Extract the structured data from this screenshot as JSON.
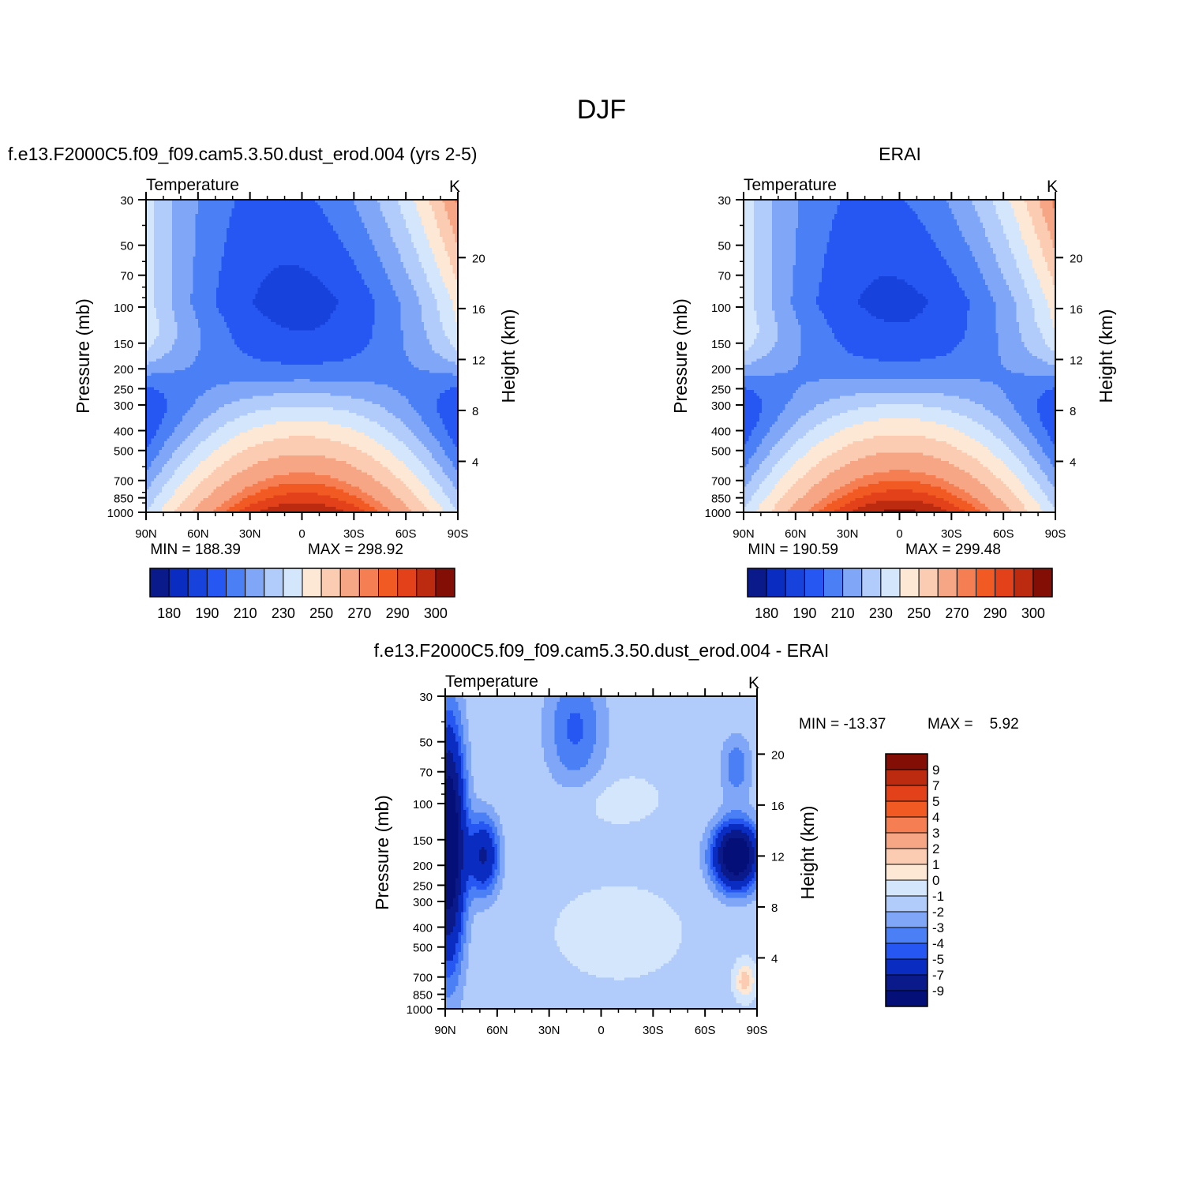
{
  "figure": {
    "title": "DJF"
  },
  "chart_data": [
    {
      "type": "heatmap",
      "panel": "model",
      "title": "f.e13.F2000C5.f09_f09.cam5.3.50.dust_erod.004 (yrs 2-5)",
      "variable": "Temperature",
      "units": "K",
      "xlabel": "",
      "ylabel": "Pressure (mb)",
      "ylabel_right": "Height (km)",
      "x_ticks": [
        "90N",
        "60N",
        "30N",
        "0",
        "30S",
        "60S",
        "90S"
      ],
      "y_ticks": [
        "30",
        "50",
        "70",
        "100",
        "150",
        "200",
        "250",
        "300",
        "400",
        "500",
        "700",
        "850",
        "1000"
      ],
      "y2_ticks": [
        "20",
        "16",
        "12",
        "8",
        "4"
      ],
      "min_text": "MIN = 188.39",
      "max_text": "MAX = 298.92",
      "min": 188.39,
      "max": 298.92,
      "colorbar": {
        "orientation": "horizontal",
        "colors": [
          "#0a1a8a",
          "#0b2cc0",
          "#1742dc",
          "#2757f2",
          "#4a7ff5",
          "#7fa6f7",
          "#b1cbfb",
          "#d4e6fb",
          "#fde8d6",
          "#fbccb2",
          "#f6a684",
          "#f57e52",
          "#f25a24",
          "#e2411a",
          "#bc2a10",
          "#820e06"
        ],
        "labels": [
          "180",
          "190",
          "210",
          "230",
          "250",
          "270",
          "290",
          "300"
        ]
      }
    },
    {
      "type": "heatmap",
      "panel": "obs",
      "title": "ERAI",
      "variable": "Temperature",
      "units": "K",
      "xlabel": "",
      "ylabel": "Pressure (mb)",
      "ylabel_right": "Height (km)",
      "x_ticks": [
        "90N",
        "60N",
        "30N",
        "0",
        "30S",
        "60S",
        "90S"
      ],
      "y_ticks": [
        "30",
        "50",
        "70",
        "100",
        "150",
        "200",
        "250",
        "300",
        "400",
        "500",
        "700",
        "850",
        "1000"
      ],
      "y2_ticks": [
        "20",
        "16",
        "12",
        "8",
        "4"
      ],
      "min_text": "MIN = 190.59",
      "max_text": "MAX = 299.48",
      "min": 190.59,
      "max": 299.48,
      "colorbar": {
        "orientation": "horizontal",
        "colors": [
          "#0a1a8a",
          "#0b2cc0",
          "#1742dc",
          "#2757f2",
          "#4a7ff5",
          "#7fa6f7",
          "#b1cbfb",
          "#d4e6fb",
          "#fde8d6",
          "#fbccb2",
          "#f6a684",
          "#f57e52",
          "#f25a24",
          "#e2411a",
          "#bc2a10",
          "#820e06"
        ],
        "labels": [
          "180",
          "190",
          "210",
          "230",
          "250",
          "270",
          "290",
          "300"
        ]
      }
    },
    {
      "type": "heatmap",
      "panel": "diff",
      "title": "f.e13.F2000C5.f09_f09.cam5.3.50.dust_erod.004 - ERAI",
      "variable": "Temperature",
      "units": "K",
      "xlabel": "",
      "ylabel": "Pressure (mb)",
      "ylabel_right": "Height (km)",
      "x_ticks": [
        "90N",
        "60N",
        "30N",
        "0",
        "30S",
        "60S",
        "90S"
      ],
      "y_ticks": [
        "30",
        "50",
        "70",
        "100",
        "150",
        "200",
        "250",
        "300",
        "400",
        "500",
        "700",
        "850",
        "1000"
      ],
      "y2_ticks": [
        "20",
        "16",
        "12",
        "8",
        "4"
      ],
      "min_text": "MIN = -13.37",
      "max_text": "MAX =    5.92",
      "min": -13.37,
      "max": 5.92,
      "colorbar": {
        "orientation": "vertical",
        "colors": [
          "#820e06",
          "#bc2a10",
          "#e2411a",
          "#f25a24",
          "#f57e52",
          "#f6a684",
          "#fbccb2",
          "#fde8d6",
          "#d4e6fb",
          "#b1cbfb",
          "#7fa6f7",
          "#4a7ff5",
          "#2757f2",
          "#0b2cc0",
          "#0a1a8a",
          "#050f78"
        ],
        "labels": [
          "9",
          "7",
          "5",
          "4",
          "3",
          "2",
          "1",
          "0",
          "-1",
          "-2",
          "-3",
          "-4",
          "-5",
          "-7",
          "-9"
        ]
      }
    }
  ]
}
